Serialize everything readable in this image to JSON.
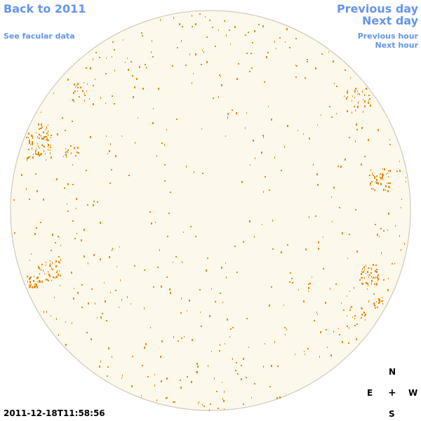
{
  "nav": {
    "back_label": "Back to 2011",
    "facular_label": "See facular data",
    "prev_day_label": "Previous day",
    "next_day_label": "Next day",
    "prev_hour_label": "Previous hour",
    "next_hour_label": "Next hour"
  },
  "timestamp": "2011-12-18T11:58:56",
  "compass": {
    "n": "N",
    "e": "E",
    "center": "+",
    "w": "W",
    "s": "S"
  },
  "colors": {
    "disk_fill": "#fdf8ec",
    "disk_edge": "#c9c0b0",
    "facula": "#e88a00",
    "link": "#6495ed"
  },
  "icons": {
    "sun_disk": "solar-disk-image"
  }
}
